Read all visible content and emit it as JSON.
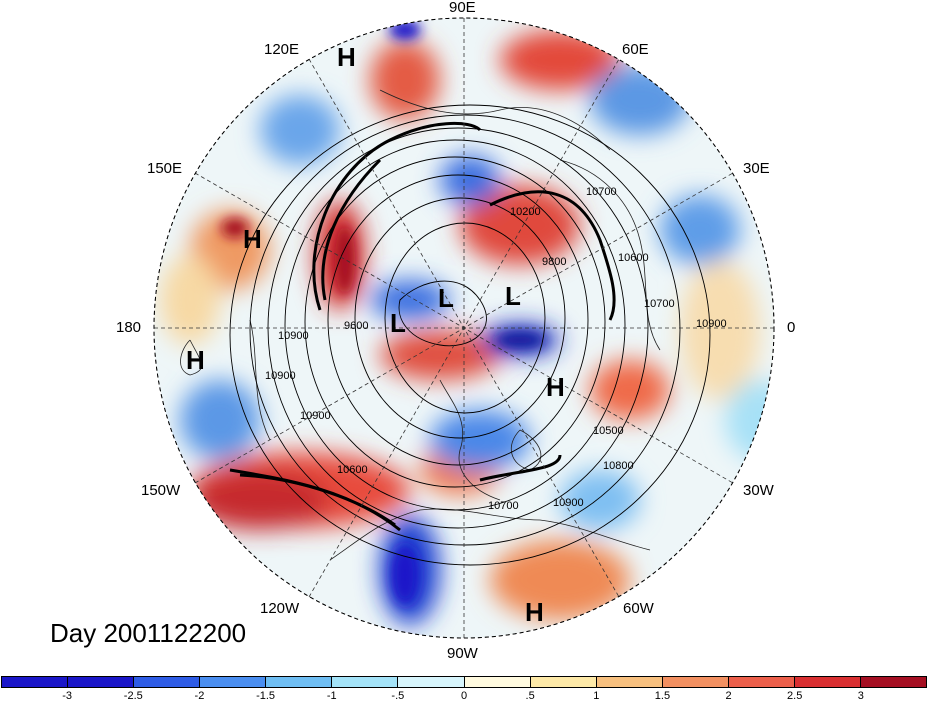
{
  "map": {
    "projection": "north-polar-stereographic",
    "longitude_labels": [
      "90E",
      "60E",
      "30E",
      "0",
      "30W",
      "60W",
      "90W",
      "120W",
      "150W",
      "180",
      "150E",
      "120E"
    ],
    "high_low_labels": [
      {
        "text": "H",
        "region": "northern Siberia"
      },
      {
        "text": "H",
        "region": "East Asia"
      },
      {
        "text": "H",
        "region": "North Pacific dateline"
      },
      {
        "text": "L",
        "region": "Arctic Canada side"
      },
      {
        "text": "L",
        "region": "North Pole"
      },
      {
        "text": "L",
        "region": "Barents Sea"
      },
      {
        "text": "H",
        "region": "North Atlantic"
      },
      {
        "text": "H",
        "region": "Caribbean"
      }
    ],
    "contour_labels": [
      "9600",
      "9800",
      "10200",
      "10700",
      "10900",
      "10600",
      "10500",
      "10800",
      "10900",
      "10700",
      "10900",
      "10600",
      "10700",
      "10900",
      "10900"
    ],
    "title": "Day 2001122200"
  },
  "colorbar": {
    "colors": [
      "#1a16c9",
      "#2e5ce6",
      "#4a8ef0",
      "#6fbef3",
      "#a4e3f8",
      "#d7f5fc",
      "#fffadf",
      "#fde9a8",
      "#f7c07f",
      "#f29061",
      "#ec5f4b",
      "#d92f31",
      "#a50f22"
    ],
    "tick_labels": [
      "-3",
      "-2.5",
      "-2",
      "-1.5",
      "-1",
      "-.5",
      "0",
      ".5",
      "1",
      "1.5",
      "2",
      "2.5",
      "3"
    ]
  }
}
